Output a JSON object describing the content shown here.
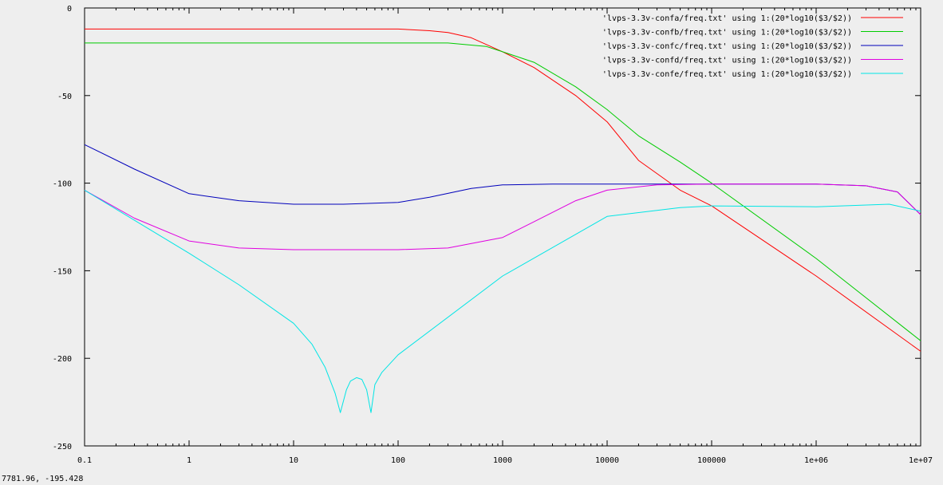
{
  "window": {
    "status_readout": "7781.96, -195.428"
  },
  "chart_data": {
    "type": "line",
    "title": "",
    "xlabel": "",
    "ylabel": "",
    "x_scale": "log",
    "xlim": [
      0.1,
      10000000
    ],
    "ylim": [
      -250,
      0
    ],
    "grid": false,
    "legend_position": "top-right",
    "x_ticks": [
      {
        "value": 0.1,
        "label": "0.1"
      },
      {
        "value": 1,
        "label": "1"
      },
      {
        "value": 10,
        "label": "10"
      },
      {
        "value": 100,
        "label": "100"
      },
      {
        "value": 1000,
        "label": "1000"
      },
      {
        "value": 10000,
        "label": "10000"
      },
      {
        "value": 100000,
        "label": "100000"
      },
      {
        "value": 1000000,
        "label": "1e+06"
      },
      {
        "value": 10000000,
        "label": "1e+07"
      }
    ],
    "y_ticks": [
      {
        "value": 0,
        "label": "0"
      },
      {
        "value": -50,
        "label": "-50"
      },
      {
        "value": -100,
        "label": "-100"
      },
      {
        "value": -150,
        "label": "-150"
      },
      {
        "value": -200,
        "label": "-200"
      },
      {
        "value": -250,
        "label": "-250"
      }
    ],
    "series": [
      {
        "name": "'lvps-3.3v-confa/freq.txt' using 1:(20*log10($3/$2))",
        "color": "#ff0000",
        "x": [
          0.1,
          1,
          10,
          100,
          200,
          300,
          500,
          1000,
          2000,
          5000,
          10000,
          20000,
          50000,
          100000,
          1000000,
          10000000
        ],
        "y": [
          -12,
          -12,
          -12,
          -12,
          -13,
          -14,
          -17,
          -25,
          -34,
          -50,
          -65,
          -87,
          -104,
          -113,
          -153,
          -196
        ]
      },
      {
        "name": "'lvps-3.3v-confb/freq.txt' using 1:(20*log10($3/$2))",
        "color": "#00cc00",
        "x": [
          0.1,
          1,
          10,
          100,
          300,
          700,
          1000,
          2000,
          5000,
          10000,
          20000,
          50000,
          100000,
          1000000,
          10000000
        ],
        "y": [
          -20,
          -20,
          -20,
          -20,
          -20,
          -22,
          -25,
          -31,
          -45,
          -58,
          -73,
          -88,
          -100,
          -143,
          -190
        ]
      },
      {
        "name": "'lvps-3.3v-confc/freq.txt' using 1:(20*log10($3/$2))",
        "color": "#0000bb",
        "x": [
          0.1,
          0.3,
          1,
          3,
          10,
          30,
          100,
          200,
          500,
          1000,
          3000,
          10000,
          100000,
          1000000,
          3000000,
          6000000,
          10000000
        ],
        "y": [
          -78,
          -92,
          -106,
          -110,
          -112,
          -112,
          -111,
          -108,
          -103,
          -101,
          -100.5,
          -100.5,
          -100.5,
          -100.5,
          -101.5,
          -105,
          -118
        ]
      },
      {
        "name": "'lvps-3.3v-confd/freq.txt' using 1:(20*log10($3/$2))",
        "color": "#e000e0",
        "x": [
          0.1,
          0.3,
          1,
          3,
          10,
          30,
          100,
          300,
          1000,
          2000,
          5000,
          10000,
          30000,
          100000,
          1000000,
          3000000,
          6000000,
          10000000
        ],
        "y": [
          -104,
          -120,
          -133,
          -137,
          -138,
          -138,
          -138,
          -137,
          -131,
          -122,
          -110,
          -104,
          -101,
          -100.5,
          -100.5,
          -101.5,
          -105,
          -118
        ]
      },
      {
        "name": "'lvps-3.3v-confe/freq.txt' using 1:(20*log10($3/$2))",
        "color": "#00e5e5",
        "x": [
          0.1,
          1,
          3,
          10,
          15,
          20,
          25,
          28,
          32,
          35,
          40,
          45,
          50,
          55,
          60,
          70,
          100,
          1000,
          10000,
          50000,
          100000,
          1000000,
          5000000,
          10000000
        ],
        "y": [
          -104,
          -140,
          -158,
          -180,
          -192,
          -205,
          -220,
          -231,
          -218,
          -213,
          -211,
          -212,
          -218,
          -231,
          -215,
          -208,
          -198,
          -153,
          -119,
          -114,
          -113,
          -113.5,
          -112,
          -116
        ]
      }
    ]
  }
}
